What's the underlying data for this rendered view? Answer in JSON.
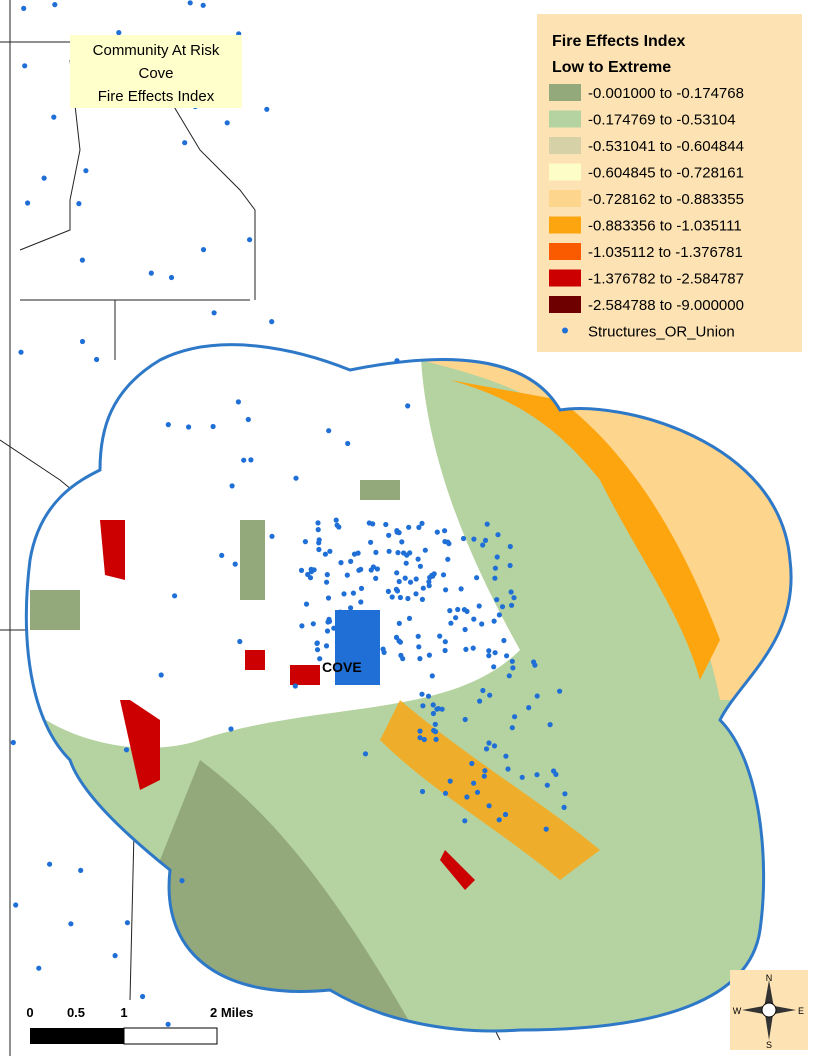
{
  "title_box": {
    "lines": [
      "Community At Risk",
      "Cove",
      "Fire Effects Index"
    ]
  },
  "legend": {
    "title": "Fire Effects Index",
    "subtitle": "Low to Extreme",
    "items": [
      {
        "label": "-0.001000  to  -0.174768",
        "color": "#93a97c"
      },
      {
        "label": "-0.174769  to  -0.53104",
        "color": "#b5d3a0"
      },
      {
        "label": "-0.531041  to  -0.604844",
        "color": "#d6d1a6"
      },
      {
        "label": "-0.604845  to  -0.728161",
        "color": "#fdfdc8"
      },
      {
        "label": "-0.728162  to  -0.883355",
        "color": "#fdd58c"
      },
      {
        "label": "-0.883356  to  -1.035111",
        "color": "#fda50f"
      },
      {
        "label": "-1.035112  to  -1.376781",
        "color": "#fb5b00"
      },
      {
        "label": "-1.376782  to  -2.584787",
        "color": "#cc0000"
      },
      {
        "label": "-2.584788  to  -9.000000",
        "color": "#6e0000"
      }
    ],
    "structures": {
      "label": "Structures_OR_Union",
      "color": "#1f6fd6"
    }
  },
  "place_label": "COVE",
  "scale_bar": {
    "labels": [
      "0",
      "0.5",
      "1",
      "2 Miles"
    ]
  },
  "compass": {
    "n": "N",
    "s": "S",
    "e": "E",
    "w": "W"
  }
}
